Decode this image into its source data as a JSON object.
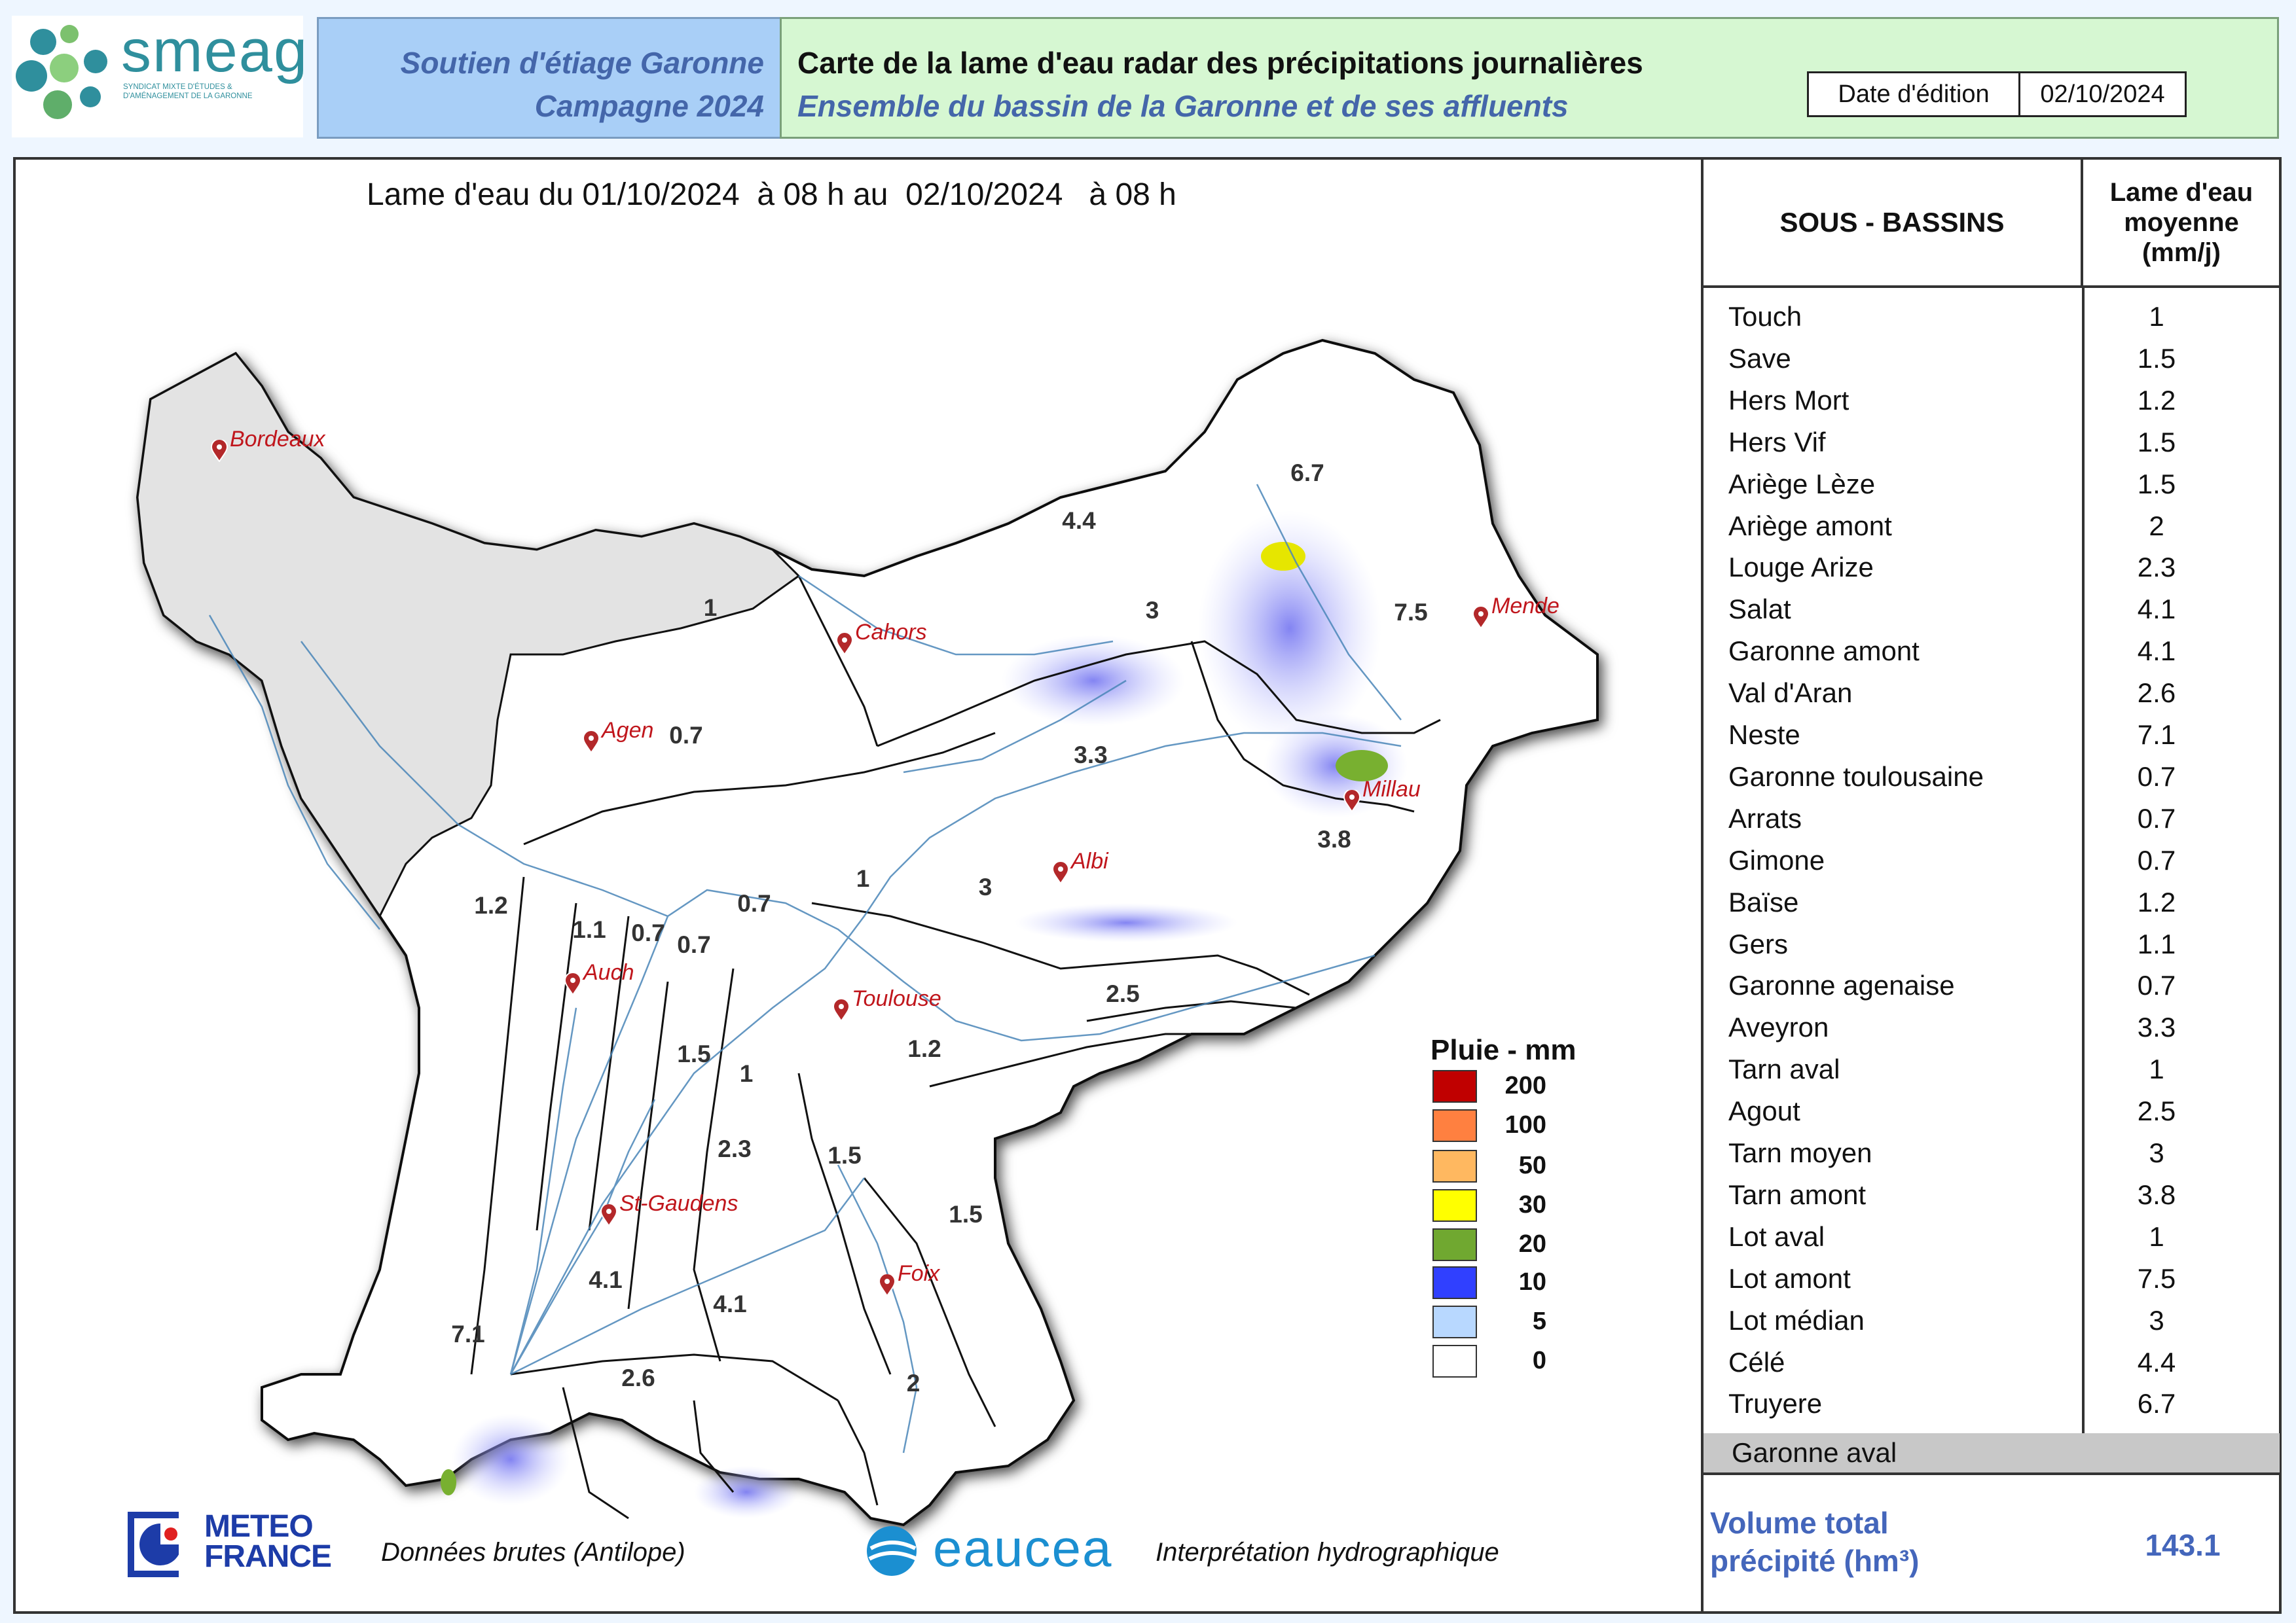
{
  "header": {
    "logo_word": "smeag",
    "logo_subtitle": "SYNDICAT MIXTE D'ÉTUDES & D'AMÉNAGEMENT DE LA GARONNE",
    "campaign_line1": "Soutien d'étiage Garonne",
    "campaign_line2": "Campagne 2024",
    "title_line1": "Carte de la lame d'eau radar des précipitations journalières",
    "title_line2": "Ensemble du bassin de la Garonne et de ses affluents",
    "date_label": "Date d'édition",
    "date_value": "02/10/2024"
  },
  "map": {
    "title": "Lame d'eau du 01/10/2024  à 08 h au  02/10/2024   à 08 h",
    "cities": [
      "Bordeaux",
      "Cahors",
      "Mende",
      "Agen",
      "Millau",
      "Albi",
      "Auch",
      "Toulouse",
      "St-Gaudens",
      "Foix"
    ],
    "basin_values": [
      "6.7",
      "4.4",
      "1",
      "3",
      "7.5",
      "0.7",
      "3.3",
      "3.8",
      "1.2",
      "1",
      "3",
      "0.7",
      "1.1",
      "0.7",
      "0.7",
      "2.5",
      "1.5",
      "1",
      "1.2",
      "2.3",
      "1.5",
      "1.5",
      "4.1",
      "4.1",
      "7.1",
      "2.6",
      "2"
    ]
  },
  "legend": {
    "title": "Pluie - mm",
    "items": [
      {
        "value": "200",
        "color": "#c00000"
      },
      {
        "value": "100",
        "color": "#ff8040"
      },
      {
        "value": "50",
        "color": "#ffb860"
      },
      {
        "value": "30",
        "color": "#ffff00"
      },
      {
        "value": "20",
        "color": "#70a830"
      },
      {
        "value": "10",
        "color": "#3040ff"
      },
      {
        "value": "5",
        "color": "#b8d8ff"
      },
      {
        "value": "0",
        "color": "#ffffff"
      }
    ]
  },
  "table": {
    "col1_header": "SOUS - BASSINS",
    "col2_header_l1": "Lame d'eau",
    "col2_header_l2": "moyenne",
    "col2_header_l3": "(mm/j)",
    "rows": [
      {
        "name": "Touch",
        "value": "1"
      },
      {
        "name": "Save",
        "value": "1.5"
      },
      {
        "name": "Hers Mort",
        "value": "1.2"
      },
      {
        "name": "Hers Vif",
        "value": "1.5"
      },
      {
        "name": "Ariège Lèze",
        "value": "1.5"
      },
      {
        "name": "Ariège amont",
        "value": "2"
      },
      {
        "name": "Louge Arize",
        "value": "2.3"
      },
      {
        "name": "Salat",
        "value": "4.1"
      },
      {
        "name": "Garonne amont",
        "value": "4.1"
      },
      {
        "name": "Val d'Aran",
        "value": "2.6"
      },
      {
        "name": "Neste",
        "value": "7.1"
      },
      {
        "name": "Garonne toulousaine",
        "value": "0.7"
      },
      {
        "name": "Arrats",
        "value": "0.7"
      },
      {
        "name": "Gimone",
        "value": "0.7"
      },
      {
        "name": "Baïse",
        "value": "1.2"
      },
      {
        "name": "Gers",
        "value": "1.1"
      },
      {
        "name": "Garonne agenaise",
        "value": "0.7"
      },
      {
        "name": "Aveyron",
        "value": "3.3"
      },
      {
        "name": "Tarn aval",
        "value": "1"
      },
      {
        "name": "Agout",
        "value": "2.5"
      },
      {
        "name": "Tarn moyen",
        "value": "3"
      },
      {
        "name": "Tarn amont",
        "value": "3.8"
      },
      {
        "name": "Lot aval",
        "value": "1"
      },
      {
        "name": "Lot amont",
        "value": "7.5"
      },
      {
        "name": "Lot médian",
        "value": "3"
      },
      {
        "name": "Célé",
        "value": "4.4"
      },
      {
        "name": "Truyere",
        "value": "6.7"
      }
    ],
    "aval_name": "Garonne aval",
    "volume_label_l1": "Volume total",
    "volume_label_l2": "précipité (hm³)",
    "volume_value": "143.1"
  },
  "footer": {
    "meteo_l1": "METEO",
    "meteo_l2": "FRANCE",
    "meteo_caption": "Données brutes (Antilope)",
    "eaucea": "eaucea",
    "eaucea_caption": "Interprétation hydrographique"
  }
}
